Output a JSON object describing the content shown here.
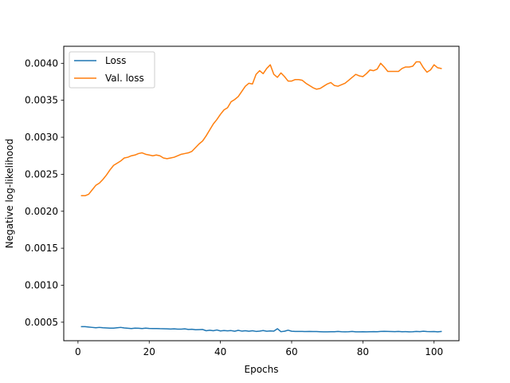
{
  "chart_data": {
    "type": "line",
    "title": "",
    "xlabel": "Epochs",
    "ylabel": "Negative log-likelihood",
    "xlim": [
      -4,
      107
    ],
    "ylim": [
      0.00025,
      0.00423
    ],
    "xticks": [
      0,
      20,
      40,
      60,
      80,
      100
    ],
    "yticks": [
      0.0005,
      0.001,
      0.0015,
      0.002,
      0.0025,
      0.003,
      0.0035,
      0.004
    ],
    "ytick_labels": [
      "0.0005",
      "0.0010",
      "0.0015",
      "0.0020",
      "0.0025",
      "0.0030",
      "0.0035",
      "0.0040"
    ],
    "grid": false,
    "legend": "upper-left",
    "series": [
      {
        "name": "Loss",
        "color": "#1f77b4",
        "x": [
          1,
          2,
          3,
          4,
          5,
          6,
          7,
          8,
          9,
          10,
          11,
          12,
          13,
          14,
          15,
          16,
          17,
          18,
          19,
          20,
          21,
          22,
          23,
          24,
          25,
          26,
          27,
          28,
          29,
          30,
          31,
          32,
          33,
          34,
          35,
          36,
          37,
          38,
          39,
          40,
          41,
          42,
          43,
          44,
          45,
          46,
          47,
          48,
          49,
          50,
          51,
          52,
          53,
          54,
          55,
          56,
          57,
          58,
          59,
          60,
          61,
          62,
          63,
          64,
          65,
          66,
          67,
          68,
          69,
          70,
          71,
          72,
          73,
          74,
          75,
          76,
          77,
          78,
          79,
          80,
          81,
          82,
          83,
          84,
          85,
          86,
          87,
          88,
          89,
          90,
          91,
          92,
          93,
          94,
          95,
          96,
          97,
          98,
          99,
          100,
          101,
          102
        ],
        "values": [
          0.00044,
          0.00044,
          0.000435,
          0.00043,
          0.000425,
          0.00043,
          0.000425,
          0.000422,
          0.00042,
          0.00042,
          0.000425,
          0.00043,
          0.000422,
          0.000418,
          0.000415,
          0.00042,
          0.000418,
          0.000415,
          0.00042,
          0.000416,
          0.000414,
          0.000415,
          0.000413,
          0.000412,
          0.00041,
          0.000408,
          0.00041,
          0.000407,
          0.000406,
          0.00041,
          0.000402,
          0.000405,
          0.000398,
          0.0004,
          0.000402,
          0.000385,
          0.000392,
          0.000385,
          0.000395,
          0.000382,
          0.000388,
          0.000384,
          0.000387,
          0.000378,
          0.00039,
          0.00038,
          0.000385,
          0.000378,
          0.000385,
          0.000376,
          0.00038,
          0.000388,
          0.000378,
          0.000382,
          0.00038,
          0.000412,
          0.000372,
          0.000378,
          0.000392,
          0.000378,
          0.000376,
          0.000375,
          0.000375,
          0.000374,
          0.000376,
          0.000374,
          0.000374,
          0.000372,
          0.00037,
          0.00037,
          0.000372,
          0.000372,
          0.000375,
          0.000372,
          0.00037,
          0.000372,
          0.000375,
          0.00037,
          0.00037,
          0.000372,
          0.00037,
          0.000371,
          0.000373,
          0.000372,
          0.000375,
          0.000377,
          0.000376,
          0.000374,
          0.000373,
          0.000375,
          0.000372,
          0.000373,
          0.00037,
          0.000372,
          0.000375,
          0.000373,
          0.000378,
          0.000374,
          0.000373,
          0.000374,
          0.00037,
          0.000375
        ]
      },
      {
        "name": "Val. loss",
        "color": "#ff7f0e",
        "x": [
          1,
          2,
          3,
          4,
          5,
          6,
          7,
          8,
          9,
          10,
          11,
          12,
          13,
          14,
          15,
          16,
          17,
          18,
          19,
          20,
          21,
          22,
          23,
          24,
          25,
          26,
          27,
          28,
          29,
          30,
          31,
          32,
          33,
          34,
          35,
          36,
          37,
          38,
          39,
          40,
          41,
          42,
          43,
          44,
          45,
          46,
          47,
          48,
          49,
          50,
          51,
          52,
          53,
          54,
          55,
          56,
          57,
          58,
          59,
          60,
          61,
          62,
          63,
          64,
          65,
          66,
          67,
          68,
          69,
          70,
          71,
          72,
          73,
          74,
          75,
          76,
          77,
          78,
          79,
          80,
          81,
          82,
          83,
          84,
          85,
          86,
          87,
          88,
          89,
          90,
          91,
          92,
          93,
          94,
          95,
          96,
          97,
          98,
          99,
          100,
          101,
          102
        ],
        "values": [
          0.00221,
          0.00221,
          0.00223,
          0.00229,
          0.00235,
          0.00238,
          0.00243,
          0.00249,
          0.00256,
          0.00262,
          0.00265,
          0.00268,
          0.00272,
          0.00273,
          0.00275,
          0.00276,
          0.00278,
          0.00279,
          0.00277,
          0.00276,
          0.00275,
          0.00276,
          0.00275,
          0.00272,
          0.00271,
          0.00272,
          0.00273,
          0.00275,
          0.00277,
          0.00278,
          0.00279,
          0.00281,
          0.00286,
          0.00291,
          0.00295,
          0.00302,
          0.0031,
          0.00318,
          0.00324,
          0.00331,
          0.00337,
          0.0034,
          0.00348,
          0.00351,
          0.00355,
          0.00362,
          0.00369,
          0.00373,
          0.00372,
          0.00385,
          0.0039,
          0.00386,
          0.00393,
          0.00398,
          0.00385,
          0.00381,
          0.00387,
          0.00382,
          0.00376,
          0.00376,
          0.00378,
          0.00378,
          0.00377,
          0.00373,
          0.0037,
          0.00367,
          0.00365,
          0.00366,
          0.00369,
          0.00372,
          0.00374,
          0.0037,
          0.00369,
          0.00371,
          0.00373,
          0.00377,
          0.00381,
          0.00385,
          0.00383,
          0.00382,
          0.00386,
          0.00391,
          0.0039,
          0.00392,
          0.004,
          0.00395,
          0.00389,
          0.00389,
          0.00389,
          0.00389,
          0.00393,
          0.00395,
          0.00395,
          0.00396,
          0.00402,
          0.00402,
          0.00394,
          0.00388,
          0.00391,
          0.00398,
          0.00394,
          0.00393
        ]
      }
    ]
  }
}
